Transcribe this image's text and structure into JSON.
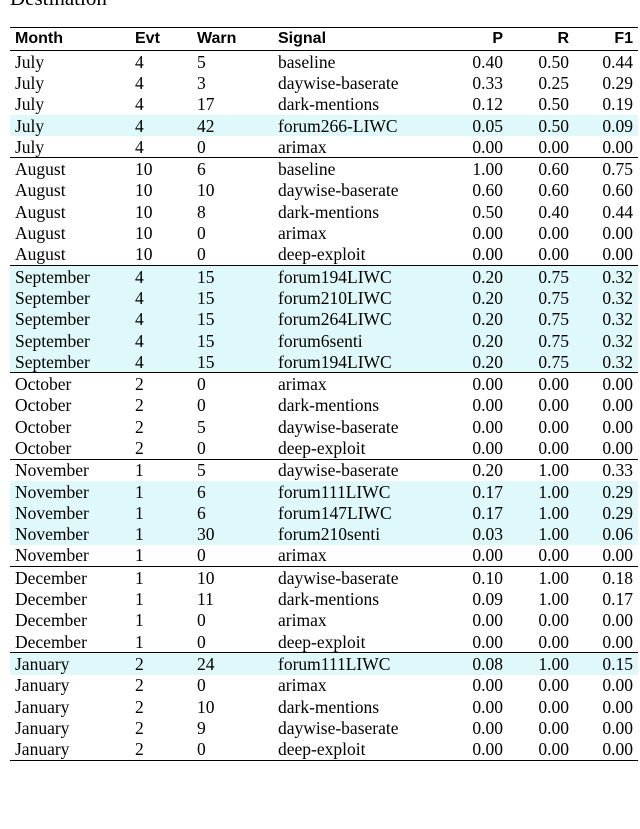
{
  "title": "Destination",
  "table": {
    "header": [
      "Month",
      "Evt",
      "Warn",
      "Signal",
      "P",
      "R",
      "F1"
    ],
    "highlight_color": "#dff9fb",
    "groups": [
      {
        "rows": [
          {
            "cells": [
              "July",
              "4",
              "5",
              "baseline",
              "0.40",
              "0.50",
              "0.44"
            ],
            "highlight": false
          },
          {
            "cells": [
              "July",
              "4",
              "3",
              "daywise-baserate",
              "0.33",
              "0.25",
              "0.29"
            ],
            "highlight": false
          },
          {
            "cells": [
              "July",
              "4",
              "17",
              "dark-mentions",
              "0.12",
              "0.50",
              "0.19"
            ],
            "highlight": false
          },
          {
            "cells": [
              "July",
              "4",
              "42",
              "forum266-LIWC",
              "0.05",
              "0.50",
              "0.09"
            ],
            "highlight": true
          },
          {
            "cells": [
              "July",
              "4",
              "0",
              "arimax",
              "0.00",
              "0.00",
              "0.00"
            ],
            "highlight": false
          }
        ]
      },
      {
        "rows": [
          {
            "cells": [
              "August",
              "10",
              "6",
              "baseline",
              "1.00",
              "0.60",
              "0.75"
            ],
            "highlight": false
          },
          {
            "cells": [
              "August",
              "10",
              "10",
              "daywise-baserate",
              "0.60",
              "0.60",
              "0.60"
            ],
            "highlight": false
          },
          {
            "cells": [
              "August",
              "10",
              "8",
              "dark-mentions",
              "0.50",
              "0.40",
              "0.44"
            ],
            "highlight": false
          },
          {
            "cells": [
              "August",
              "10",
              "0",
              "arimax",
              "0.00",
              "0.00",
              "0.00"
            ],
            "highlight": false
          },
          {
            "cells": [
              "August",
              "10",
              "0",
              "deep-exploit",
              "0.00",
              "0.00",
              "0.00"
            ],
            "highlight": false
          }
        ]
      },
      {
        "rows": [
          {
            "cells": [
              "September",
              "4",
              "15",
              "forum194LIWC",
              "0.20",
              "0.75",
              "0.32"
            ],
            "highlight": true
          },
          {
            "cells": [
              "September",
              "4",
              "15",
              "forum210LIWC",
              "0.20",
              "0.75",
              "0.32"
            ],
            "highlight": true
          },
          {
            "cells": [
              "September",
              "4",
              "15",
              "forum264LIWC",
              "0.20",
              "0.75",
              "0.32"
            ],
            "highlight": true
          },
          {
            "cells": [
              "September",
              "4",
              "15",
              "forum6senti",
              "0.20",
              "0.75",
              "0.32"
            ],
            "highlight": true
          },
          {
            "cells": [
              "September",
              "4",
              "15",
              "forum194LIWC",
              "0.20",
              "0.75",
              "0.32"
            ],
            "highlight": true
          }
        ]
      },
      {
        "rows": [
          {
            "cells": [
              "October",
              "2",
              "0",
              "arimax",
              "0.00",
              "0.00",
              "0.00"
            ],
            "highlight": false
          },
          {
            "cells": [
              "October",
              "2",
              "0",
              "dark-mentions",
              "0.00",
              "0.00",
              "0.00"
            ],
            "highlight": false
          },
          {
            "cells": [
              "October",
              "2",
              "5",
              "daywise-baserate",
              "0.00",
              "0.00",
              "0.00"
            ],
            "highlight": false
          },
          {
            "cells": [
              "October",
              "2",
              "0",
              "deep-exploit",
              "0.00",
              "0.00",
              "0.00"
            ],
            "highlight": false
          }
        ]
      },
      {
        "rows": [
          {
            "cells": [
              "November",
              "1",
              "5",
              "daywise-baserate",
              "0.20",
              "1.00",
              "0.33"
            ],
            "highlight": false
          },
          {
            "cells": [
              "November",
              "1",
              "6",
              "forum111LIWC",
              "0.17",
              "1.00",
              "0.29"
            ],
            "highlight": true
          },
          {
            "cells": [
              "November",
              "1",
              "6",
              "forum147LIWC",
              "0.17",
              "1.00",
              "0.29"
            ],
            "highlight": true
          },
          {
            "cells": [
              "November",
              "1",
              "30",
              "forum210senti",
              "0.03",
              "1.00",
              "0.06"
            ],
            "highlight": true
          },
          {
            "cells": [
              "November",
              "1",
              "0",
              "arimax",
              "0.00",
              "0.00",
              "0.00"
            ],
            "highlight": false
          }
        ]
      },
      {
        "rows": [
          {
            "cells": [
              "December",
              "1",
              "10",
              "daywise-baserate",
              "0.10",
              "1.00",
              "0.18"
            ],
            "highlight": false
          },
          {
            "cells": [
              "December",
              "1",
              "11",
              "dark-mentions",
              "0.09",
              "1.00",
              "0.17"
            ],
            "highlight": false
          },
          {
            "cells": [
              "December",
              "1",
              "0",
              "arimax",
              "0.00",
              "0.00",
              "0.00"
            ],
            "highlight": false
          },
          {
            "cells": [
              "December",
              "1",
              "0",
              "deep-exploit",
              "0.00",
              "0.00",
              "0.00"
            ],
            "highlight": false
          }
        ]
      },
      {
        "rows": [
          {
            "cells": [
              "January",
              "2",
              "24",
              "forum111LIWC",
              "0.08",
              "1.00",
              "0.15"
            ],
            "highlight": true
          },
          {
            "cells": [
              "January",
              "2",
              "0",
              "arimax",
              "0.00",
              "0.00",
              "0.00"
            ],
            "highlight": false
          },
          {
            "cells": [
              "January",
              "2",
              "10",
              "dark-mentions",
              "0.00",
              "0.00",
              "0.00"
            ],
            "highlight": false
          },
          {
            "cells": [
              "January",
              "2",
              "9",
              "daywise-baserate",
              "0.00",
              "0.00",
              "0.00"
            ],
            "highlight": false
          },
          {
            "cells": [
              "January",
              "2",
              "0",
              "deep-exploit",
              "0.00",
              "0.00",
              "0.00"
            ],
            "highlight": false
          }
        ]
      }
    ]
  }
}
